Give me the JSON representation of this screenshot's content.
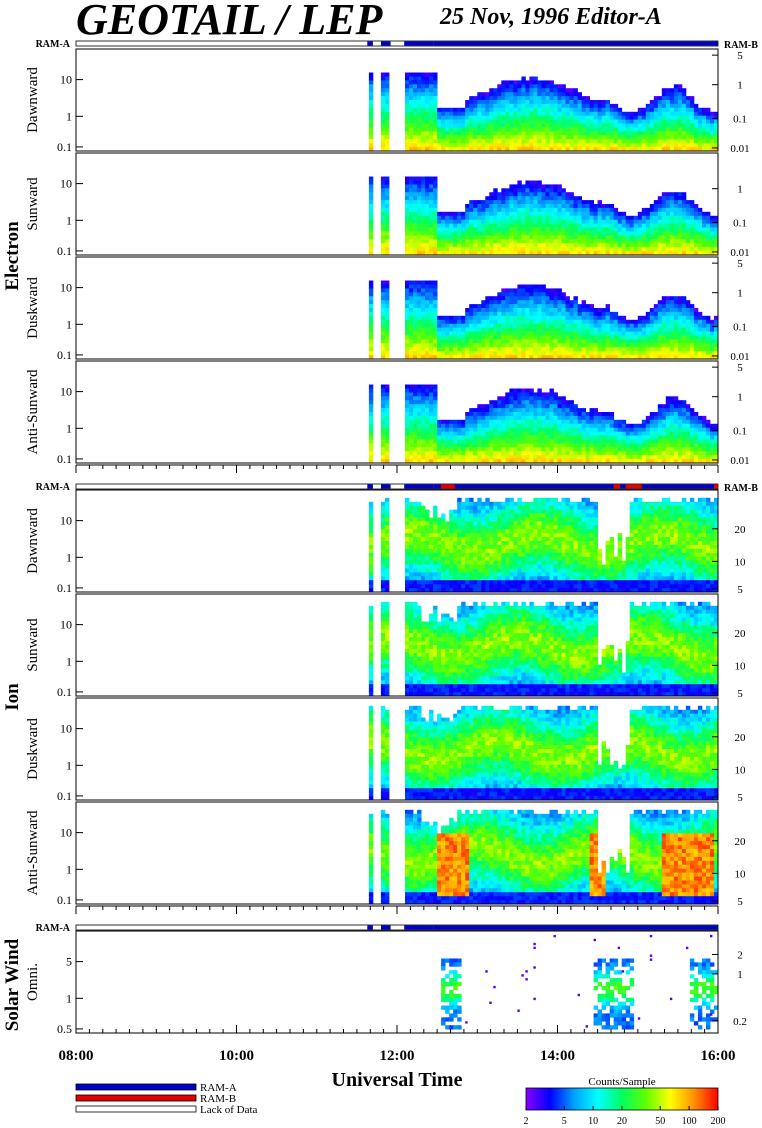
{
  "header": {
    "title": "GEOTAIL / LEP",
    "date_editor": "25 Nov, 1996   Editor-A"
  },
  "colors": {
    "ram_a": "#0000c8",
    "ram_b": "#e60000",
    "lack_of_data": "#ffffff",
    "colorscale": [
      "#8a00ff",
      "#0000ff",
      "#00a0ff",
      "#00ffff",
      "#00ff60",
      "#60ff00",
      "#ffff00",
      "#ff9000",
      "#ff0000"
    ]
  },
  "chart_data": {
    "type": "heatmap",
    "xlabel": "Universal Time",
    "x_ticks": [
      "08:00",
      "10:00",
      "12:00",
      "14:00",
      "16:00"
    ],
    "x_range_hours": [
      8,
      16
    ],
    "colorbar": {
      "label": "Counts/Sample",
      "ticks": [
        "2",
        "5",
        "10",
        "20",
        "50",
        "100",
        "200"
      ],
      "range": [
        2,
        200
      ]
    },
    "legend": [
      {
        "label": "RAM-A",
        "color": "#0000c8"
      },
      {
        "label": "RAM-B",
        "color": "#e60000"
      },
      {
        "label": "Lack of Data",
        "color": "#ffffff"
      }
    ],
    "groups": [
      {
        "name": "Electron",
        "ram_left": "RAM-A",
        "ram_right": "RAM-B",
        "panels": [
          {
            "label": "Dawnward",
            "y_ticks": [
              "10",
              "1",
              "0.1"
            ],
            "y2_ticks": [
              "5",
              "1",
              "0.1",
              "0.01"
            ]
          },
          {
            "label": "Sunward",
            "y_ticks": [
              "10",
              "1",
              "0.1"
            ],
            "y2_ticks": [
              "1",
              "0.1",
              "0.01"
            ]
          },
          {
            "label": "Duskward",
            "y_ticks": [
              "10",
              "1",
              "0.1"
            ],
            "y2_ticks": [
              "5",
              "1",
              "0.1",
              "0.01"
            ]
          },
          {
            "label": "Anti-Sunward",
            "y_ticks": [
              "10",
              "1",
              "0.1"
            ],
            "y2_ticks": [
              "5",
              "1",
              "0.1",
              "0.01"
            ]
          }
        ]
      },
      {
        "name": "Ion",
        "ram_left": "RAM-A",
        "ram_right": "RAM-B",
        "panels": [
          {
            "label": "Dawnward",
            "y_ticks": [
              "10",
              "1",
              "0.1"
            ],
            "y2_ticks": [
              "20",
              "10",
              "5"
            ]
          },
          {
            "label": "Sunward",
            "y_ticks": [
              "10",
              "1",
              "0.1"
            ],
            "y2_ticks": [
              "20",
              "10",
              "5"
            ]
          },
          {
            "label": "Duskward",
            "y_ticks": [
              "10",
              "1",
              "0.1"
            ],
            "y2_ticks": [
              "20",
              "10",
              "5"
            ]
          },
          {
            "label": "Anti-Sunward",
            "y_ticks": [
              "10",
              "1",
              "0.1"
            ],
            "y2_ticks": [
              "20",
              "10",
              "5"
            ]
          }
        ]
      },
      {
        "name": "Solar Wind",
        "ram_left": "RAM-A",
        "ram_right": "",
        "panels": [
          {
            "label": "Omni.",
            "y_ticks": [
              "5",
              "1",
              "0.5"
            ],
            "y2_ticks": [
              "2",
              "1",
              "0.2"
            ]
          }
        ]
      }
    ]
  }
}
